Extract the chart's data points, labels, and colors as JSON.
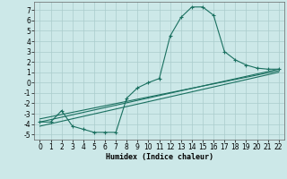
{
  "title": "",
  "xlabel": "Humidex (Indice chaleur)",
  "xlim": [
    -0.5,
    22.5
  ],
  "ylim": [
    -5.5,
    7.8
  ],
  "xticks": [
    0,
    1,
    2,
    3,
    4,
    5,
    6,
    7,
    8,
    9,
    10,
    11,
    12,
    13,
    14,
    15,
    16,
    17,
    18,
    19,
    20,
    21,
    22
  ],
  "yticks": [
    -5,
    -4,
    -3,
    -2,
    -1,
    0,
    1,
    2,
    3,
    4,
    5,
    6,
    7
  ],
  "background_color": "#cce8e8",
  "grid_color": "#aacccc",
  "line_color": "#1a7060",
  "line1_x": [
    0,
    1,
    2,
    3,
    4,
    5,
    6,
    7,
    8,
    9,
    10,
    11,
    12,
    13,
    14,
    15,
    16,
    17,
    18,
    19,
    20,
    21,
    22
  ],
  "line1_y": [
    -3.8,
    -3.8,
    -2.7,
    -4.2,
    -4.5,
    -4.8,
    -4.8,
    -4.8,
    -1.5,
    -0.5,
    0.0,
    0.4,
    4.5,
    6.3,
    7.3,
    7.3,
    6.5,
    3.0,
    2.2,
    1.7,
    1.4,
    1.3,
    1.3
  ],
  "line2_x": [
    0,
    22
  ],
  "line2_y": [
    -3.8,
    1.3
  ],
  "line3_x": [
    0,
    22
  ],
  "line3_y": [
    -3.5,
    1.15
  ],
  "line4_x": [
    0,
    22
  ],
  "line4_y": [
    -4.2,
    1.0
  ],
  "figsize": [
    3.2,
    2.0
  ],
  "dpi": 100,
  "tick_fontsize": 5.5,
  "xlabel_fontsize": 6.0
}
